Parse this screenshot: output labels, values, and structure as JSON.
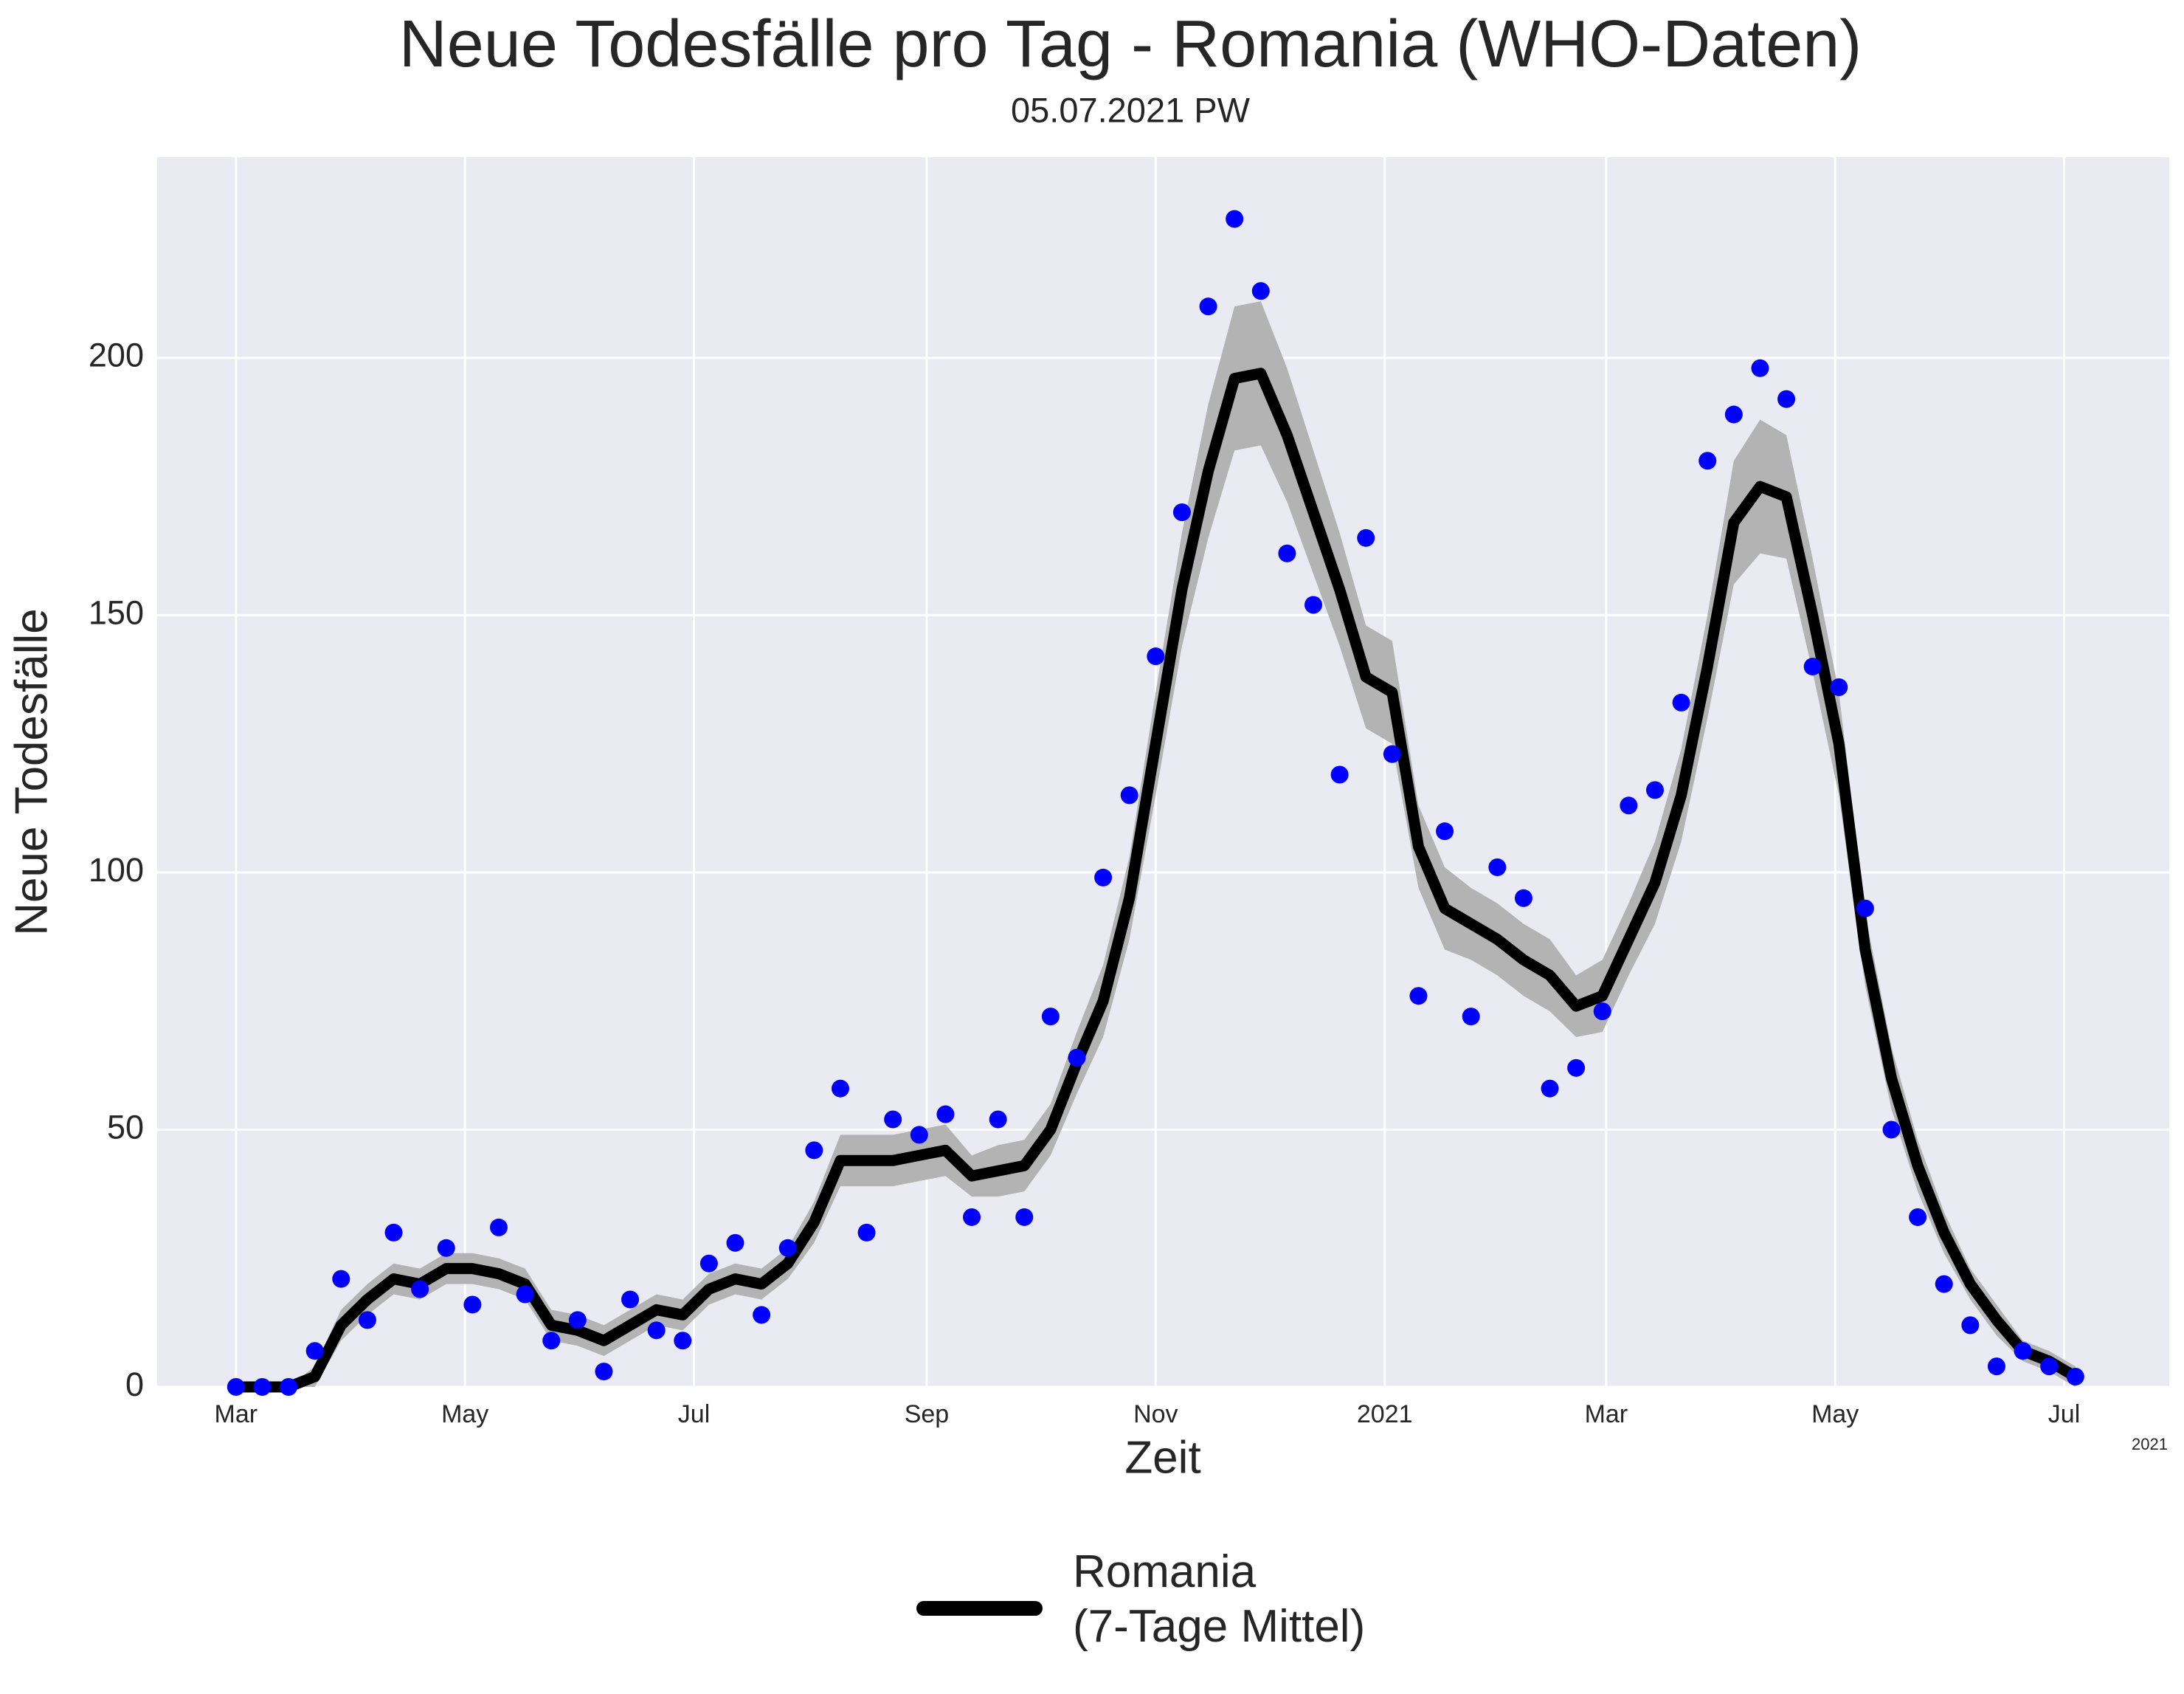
{
  "chart_data": {
    "type": "line",
    "title": "Neue Todesfälle pro Tag - Romania (WHO-Daten)",
    "subtitle": "05.07.2021 PW",
    "xlabel": "Zeit",
    "ylabel": "Neue Todesfälle",
    "x_offset_label": "2021",
    "x": [
      "2020-03-01",
      "2020-03-08",
      "2020-03-15",
      "2020-03-22",
      "2020-03-29",
      "2020-04-05",
      "2020-04-12",
      "2020-04-19",
      "2020-04-26",
      "2020-05-03",
      "2020-05-10",
      "2020-05-17",
      "2020-05-24",
      "2020-05-31",
      "2020-06-07",
      "2020-06-14",
      "2020-06-21",
      "2020-06-28",
      "2020-07-05",
      "2020-07-12",
      "2020-07-19",
      "2020-07-26",
      "2020-08-02",
      "2020-08-09",
      "2020-08-16",
      "2020-08-23",
      "2020-08-30",
      "2020-09-06",
      "2020-09-13",
      "2020-09-20",
      "2020-09-27",
      "2020-10-04",
      "2020-10-11",
      "2020-10-18",
      "2020-10-25",
      "2020-11-01",
      "2020-11-08",
      "2020-11-15",
      "2020-11-22",
      "2020-11-29",
      "2020-12-06",
      "2020-12-13",
      "2020-12-20",
      "2020-12-27",
      "2021-01-03",
      "2021-01-10",
      "2021-01-17",
      "2021-01-24",
      "2021-01-31",
      "2021-02-07",
      "2021-02-14",
      "2021-02-21",
      "2021-02-28",
      "2021-03-07",
      "2021-03-14",
      "2021-03-21",
      "2021-03-28",
      "2021-04-04",
      "2021-04-11",
      "2021-04-18",
      "2021-04-25",
      "2021-05-02",
      "2021-05-09",
      "2021-05-16",
      "2021-05-23",
      "2021-05-30",
      "2021-06-06",
      "2021-06-13",
      "2021-06-20",
      "2021-06-27",
      "2021-07-04"
    ],
    "series": [
      {
        "name": "Romania\n(7-Tage Mittel)",
        "type": "line",
        "color": "#000000",
        "band_color": "#b3b3b3",
        "values": [
          0,
          0,
          0,
          2,
          12,
          17,
          21,
          20,
          23,
          23,
          22,
          20,
          12,
          11,
          9,
          12,
          15,
          14,
          19,
          21,
          20,
          24,
          32,
          44,
          44,
          44,
          45,
          46,
          41,
          42,
          43,
          50,
          63,
          75,
          95,
          125,
          155,
          178,
          196,
          197,
          185,
          170,
          155,
          138,
          135,
          105,
          93,
          90,
          87,
          83,
          80,
          74,
          76,
          87,
          98,
          115,
          140,
          168,
          175,
          173,
          150,
          125,
          85,
          60,
          43,
          30,
          20,
          13,
          7,
          5,
          2
        ],
        "band_lower": [
          0,
          0,
          0,
          0,
          9,
          14,
          18,
          17,
          20,
          20,
          19,
          17,
          9,
          8,
          6,
          9,
          12,
          11,
          16,
          18,
          17,
          21,
          28,
          39,
          39,
          39,
          40,
          41,
          37,
          37,
          38,
          45,
          57,
          68,
          87,
          115,
          144,
          165,
          182,
          183,
          172,
          158,
          144,
          128,
          125,
          97,
          85,
          83,
          80,
          76,
          73,
          68,
          69,
          80,
          90,
          106,
          130,
          156,
          162,
          161,
          139,
          115,
          78,
          54,
          38,
          26,
          17,
          10,
          5,
          3,
          0
        ],
        "band_upper": [
          0,
          0,
          0,
          4,
          15,
          20,
          24,
          23,
          26,
          26,
          25,
          23,
          15,
          14,
          12,
          15,
          18,
          17,
          22,
          24,
          23,
          27,
          36,
          49,
          49,
          49,
          50,
          51,
          45,
          47,
          48,
          55,
          69,
          82,
          103,
          135,
          166,
          191,
          210,
          211,
          198,
          182,
          166,
          148,
          145,
          113,
          101,
          97,
          94,
          90,
          87,
          80,
          83,
          94,
          106,
          124,
          150,
          180,
          188,
          185,
          161,
          135,
          92,
          66,
          48,
          34,
          23,
          16,
          9,
          7,
          4
        ]
      },
      {
        "type": "scatter",
        "color": "#0000ff",
        "values": [
          0,
          0,
          0,
          7,
          21,
          13,
          30,
          19,
          27,
          16,
          31,
          18,
          9,
          13,
          3,
          17,
          11,
          9,
          24,
          28,
          14,
          27,
          46,
          58,
          30,
          52,
          49,
          53,
          33,
          52,
          33,
          72,
          64,
          99,
          115,
          142,
          170,
          210,
          227,
          213,
          162,
          152,
          119,
          165,
          123,
          76,
          108,
          72,
          101,
          95,
          58,
          62,
          73,
          113,
          116,
          133,
          180,
          189,
          198,
          192,
          140,
          136,
          93,
          50,
          33,
          20,
          12,
          4,
          7,
          4,
          2
        ]
      }
    ],
    "xlim": [
      "2020-02-09",
      "2021-07-29"
    ],
    "xticks": [
      {
        "value": "2020-03-01",
        "label": "Mar"
      },
      {
        "value": "2020-05-01",
        "label": "May"
      },
      {
        "value": "2020-07-01",
        "label": "Jul"
      },
      {
        "value": "2020-09-01",
        "label": "Sep"
      },
      {
        "value": "2020-11-01",
        "label": "Nov"
      },
      {
        "value": "2021-01-01",
        "label": "2021"
      },
      {
        "value": "2021-03-01",
        "label": "Mar"
      },
      {
        "value": "2021-05-01",
        "label": "May"
      },
      {
        "value": "2021-07-01",
        "label": "Jul"
      }
    ],
    "ylim": [
      0,
      239
    ],
    "yticks": [
      0,
      50,
      100,
      150,
      200
    ],
    "grid": true,
    "legend": "bottom"
  }
}
